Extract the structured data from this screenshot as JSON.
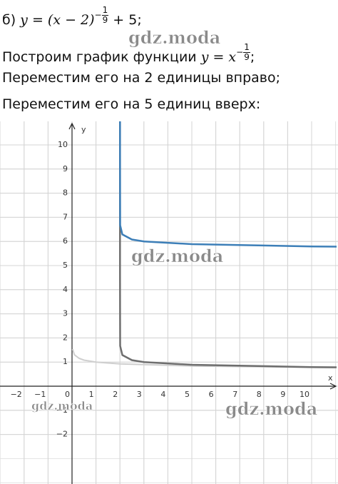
{
  "lines": [
    {
      "prefix": "б) ",
      "formula": "y = (x − 2)",
      "exp_sign": "−",
      "exp_num": "1",
      "exp_den": "9",
      "suffix": " + 5;"
    },
    {
      "prefix": "Построим график функции ",
      "formula": "y = x",
      "exp_sign": "−",
      "exp_num": "1",
      "exp_den": "9",
      "suffix": ";"
    },
    {
      "text": "Переместим его на 2 единицы вправо;"
    },
    {
      "text": "Переместим его на 5 единиц вверх:"
    }
  ],
  "watermarks": [
    "gdz.moda",
    "gdz.moda",
    "gdz.moda",
    "gdz.moda"
  ],
  "graph": {
    "x_label": "x",
    "y_label": "y",
    "xticks": [
      {
        "value": -2,
        "label": "−2"
      },
      {
        "value": -1,
        "label": "−1"
      },
      0,
      1,
      2,
      3,
      4,
      5,
      6,
      7,
      8,
      9,
      10
    ],
    "yticks": [
      {
        "value": -2,
        "label": "−2"
      },
      {
        "value": -1,
        "label": "−1"
      },
      1,
      2,
      3,
      4,
      5,
      6,
      7,
      8,
      9,
      10
    ]
  }
}
